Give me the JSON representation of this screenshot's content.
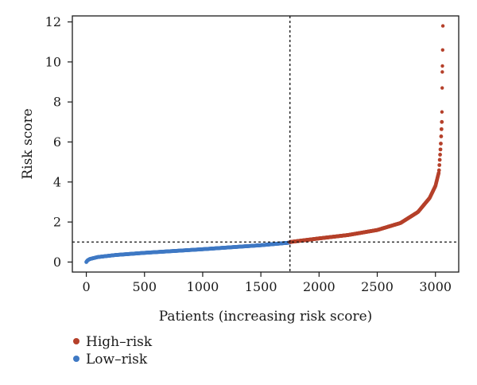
{
  "chart_data": {
    "type": "scatter",
    "title": "",
    "xlabel": "Patients (increasing risk score)",
    "ylabel": "Risk score",
    "xlim": [
      -120,
      3200
    ],
    "ylim": [
      -0.5,
      12.3
    ],
    "xticks": [
      0,
      500,
      1000,
      1500,
      2000,
      2500,
      3000
    ],
    "yticks": [
      0,
      2,
      4,
      6,
      8,
      10,
      12
    ],
    "threshold_x": 1750,
    "threshold_y": 1.0,
    "grid": false,
    "legend_position": "bottom-left",
    "series": [
      {
        "name": "High–risk",
        "color": "#b5402a",
        "x_range": [
          1750,
          3055
        ],
        "curve_points": [
          [
            1750,
            1.0
          ],
          [
            2000,
            1.18
          ],
          [
            2250,
            1.35
          ],
          [
            2500,
            1.6
          ],
          [
            2700,
            1.95
          ],
          [
            2850,
            2.5
          ],
          [
            2950,
            3.2
          ],
          [
            3000,
            3.8
          ],
          [
            3030,
            4.5
          ],
          [
            3045,
            5.8
          ],
          [
            3055,
            7.0
          ]
        ],
        "outliers": [
          [
            3056,
            7.5
          ],
          [
            3058,
            8.7
          ],
          [
            3059,
            9.5
          ],
          [
            3060,
            9.8
          ],
          [
            3062,
            10.6
          ],
          [
            3064,
            11.8
          ]
        ]
      },
      {
        "name": "Low–risk",
        "color": "#3f79c4",
        "x_range": [
          0,
          1750
        ],
        "curve_points": [
          [
            0,
            0.0
          ],
          [
            10,
            0.08
          ],
          [
            30,
            0.15
          ],
          [
            100,
            0.25
          ],
          [
            250,
            0.35
          ],
          [
            500,
            0.46
          ],
          [
            750,
            0.55
          ],
          [
            1000,
            0.64
          ],
          [
            1250,
            0.74
          ],
          [
            1500,
            0.84
          ],
          [
            1750,
            0.97
          ]
        ]
      }
    ]
  }
}
